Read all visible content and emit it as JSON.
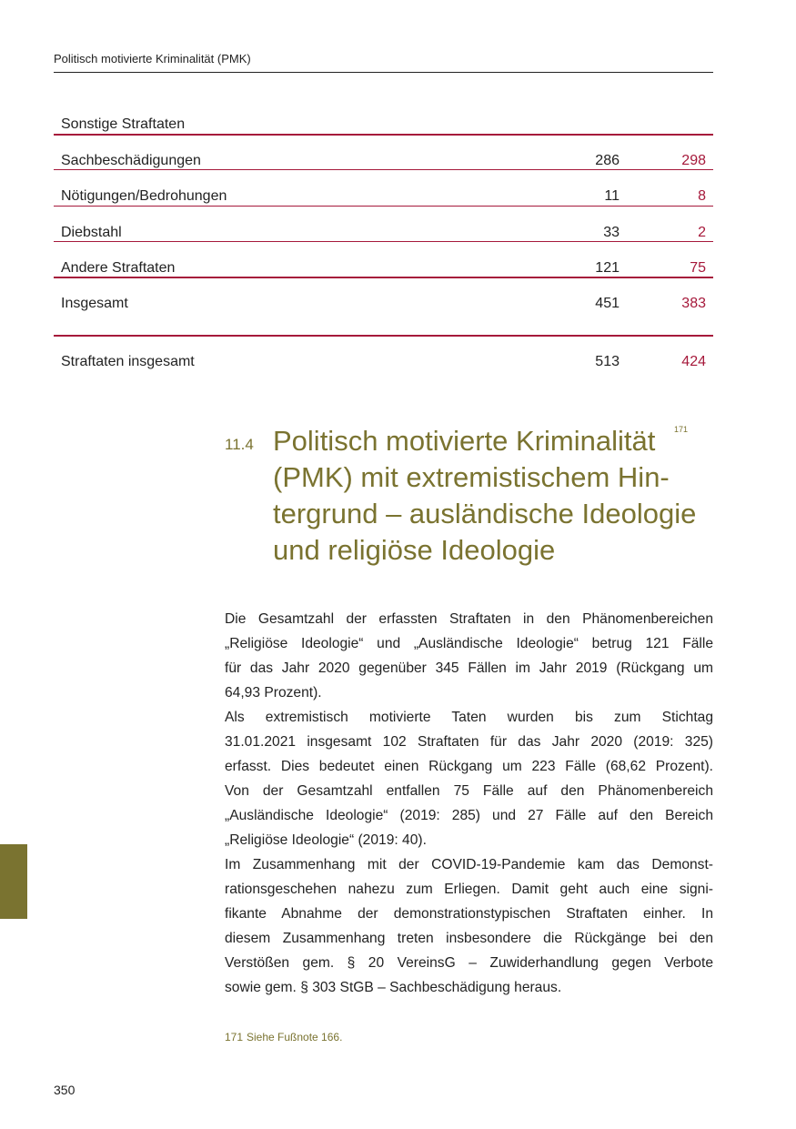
{
  "header": {
    "title": "Politisch motivierte Kriminalität (PMK)"
  },
  "table": {
    "caption": "Sonstige Straftaten",
    "rows": [
      [
        "Sachbeschädigungen",
        286,
        298
      ],
      [
        "Nötigungen/Bedrohungen",
        11,
        8
      ],
      [
        "Diebstahl",
        33,
        2
      ],
      [
        "Andere Straftaten",
        121,
        75
      ],
      [
        "Insgesamt",
        451,
        383
      ]
    ],
    "total": [
      "Straftaten insgesamt",
      513,
      424
    ]
  },
  "section": {
    "number": "11.4",
    "title_lines": [
      "Politisch motivierte Kriminalität",
      "(PMK) mit extremistischem Hin-",
      "tergrund – ausländische Ideologie",
      "und religiöse Ideologie"
    ],
    "footnote_ref": "171"
  },
  "paragraphs": [
    [
      "Die Gesamtzahl der erfassten Straftaten in den Phänomenbereichen",
      "„Religiöse Ideologie“ und „Ausländische Ideologie“ betrug 121 Fälle",
      "für das Jahr 2020 gegenüber 345 Fällen im Jahr 2019 (Rückgang um",
      "64,93 Prozent)."
    ],
    [
      "Als extremistisch motivierte Taten wurden bis zum Stichtag",
      "31.01.2021 insgesamt 102 Straftaten für das Jahr 2020 (2019: 325)",
      "erfasst. Dies bedeutet einen Rückgang um 223 Fälle (68,62 Prozent).",
      "Von der Gesamtzahl entfallen 75 Fälle auf den Phänomenbereich",
      "„Ausländische Ideologie“ (2019: 285) und 27 Fälle auf den Bereich",
      "„Religiöse Ideologie“ (2019: 40)."
    ],
    [
      "Im Zusammenhang mit der COVID-19-Pandemie kam das Demonst-",
      "rationsgeschehen nahezu zum Erliegen. Damit geht auch eine signi-",
      "fikante Abnahme der demonstrationstypischen Straftaten einher. In",
      "diesem Zusammenhang treten insbesondere die Rückgänge bei den",
      "Verstößen gem. § 20 VereinsG – Zuwiderhandlung gegen Verbote",
      "sowie gem. § 303 StGB – Sachbeschädigung heraus."
    ]
  ],
  "footnote": {
    "number": "171",
    "text": "Siehe Fußnote 166."
  },
  "page_number": "350"
}
